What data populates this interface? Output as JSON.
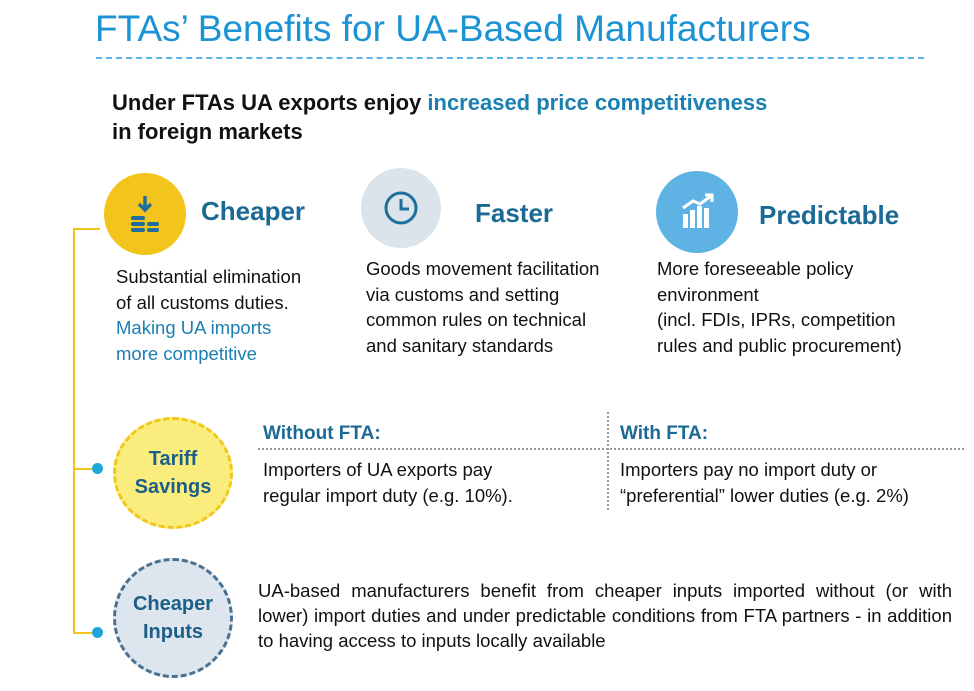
{
  "title": "FTAs’ Benefits for UA-Based Manufacturers",
  "lead": {
    "part1": "Under FTAs UA exports enjoy ",
    "highlight": "increased price competitiveness",
    "line2": "in foreign markets"
  },
  "features": {
    "cheaper": {
      "icon": "coins-down-icon",
      "heading": "Cheaper",
      "lines": [
        "Substantial elimination",
        "of all customs duties."
      ],
      "blue_lines": [
        "Making UA imports",
        "more competitive"
      ]
    },
    "faster": {
      "icon": "clock-icon",
      "heading": "Faster",
      "lines": [
        "Goods movement facilitation",
        "via customs and setting",
        "common rules on technical",
        "and sanitary standards"
      ]
    },
    "predictable": {
      "icon": "growth-chart-icon",
      "heading": "Predictable",
      "lines": [
        "More foreseeable policy",
        "environment",
        "(incl. FDIs, IPRs, competition",
        "rules and public procurement)"
      ]
    }
  },
  "tariff_savings": {
    "label_line1": "Tariff",
    "label_line2": "Savings",
    "without": {
      "heading": "Without FTA:",
      "lines": [
        "Importers of UA exports pay",
        "regular import duty (e.g. 10%)."
      ]
    },
    "with": {
      "heading": "With FTA:",
      "lines": [
        "Importers pay no import duty or",
        "“preferential” lower duties (e.g. 2%)"
      ]
    }
  },
  "cheaper_inputs": {
    "label_line1": "Cheaper",
    "label_line2": "Inputs",
    "text": "UA-based manufacturers benefit from cheaper inputs imported without (or with lower) import duties and under predictable conditions from FTA partners - in addition to having access to inputs locally available"
  },
  "colors": {
    "title_blue": "#1b93d4",
    "heading_blue": "#1b6a96",
    "accent_yellow": "#f2c41c",
    "dot_blue": "#1fa5d8"
  }
}
